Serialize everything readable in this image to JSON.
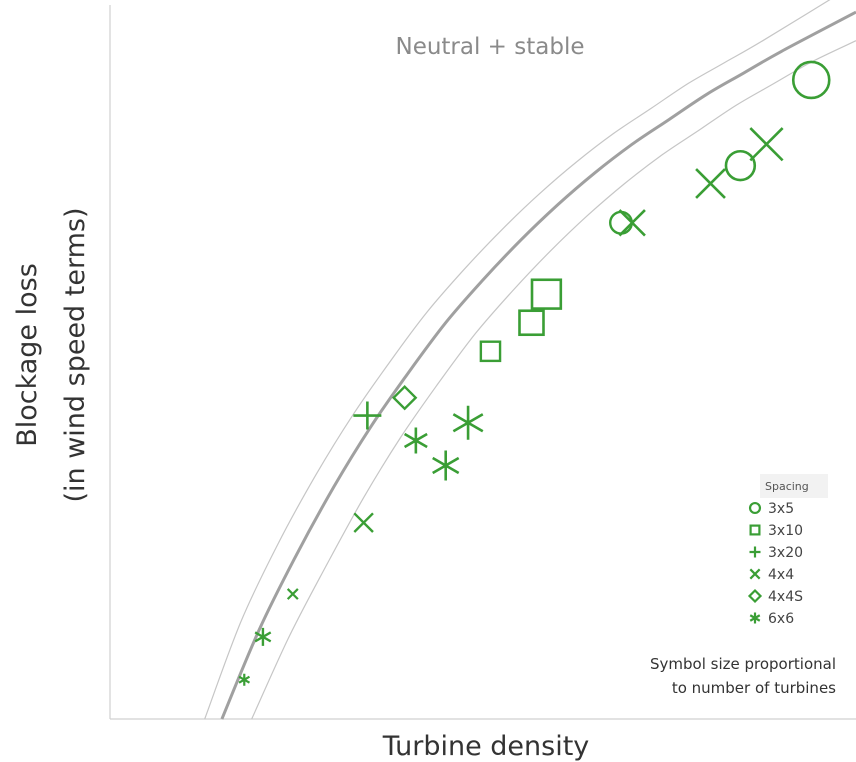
{
  "chart_data": {
    "type": "scatter",
    "title": "",
    "subtitle": "Neutral + stable",
    "xlabel": "Turbine density",
    "ylabel_lines": [
      "Blockage loss",
      "(in wind speed terms)"
    ],
    "xlim": [
      0,
      100
    ],
    "ylim": [
      0,
      100
    ],
    "grid": false,
    "colors": {
      "points": "#3a9e35",
      "fit_line": "#a0a0a0",
      "band": "#c6c6c6",
      "axis": "#d0d0d0",
      "text": "#333333",
      "subtitle": "#8a8a8a",
      "legend_bg": "#f2f2f2"
    },
    "fit": {
      "description": "curve",
      "center": [
        [
          15,
          0
        ],
        [
          20,
          12.5
        ],
        [
          25,
          23
        ],
        [
          30,
          32.5
        ],
        [
          35,
          41
        ],
        [
          40,
          48.5
        ],
        [
          45,
          55.5
        ],
        [
          50,
          61.5
        ],
        [
          55,
          67
        ],
        [
          60,
          72
        ],
        [
          65,
          76.5
        ],
        [
          70,
          80.5
        ],
        [
          75,
          84
        ],
        [
          80,
          87.5
        ],
        [
          85,
          90.5
        ],
        [
          90,
          93.5
        ],
        [
          100,
          99
        ]
      ],
      "upper": [
        [
          12.7,
          0
        ],
        [
          17.5,
          13.5
        ],
        [
          22.5,
          24.5
        ],
        [
          27.5,
          34
        ],
        [
          32.5,
          42.5
        ],
        [
          37.5,
          50
        ],
        [
          42.5,
          57
        ],
        [
          47.5,
          63
        ],
        [
          52.5,
          68.5
        ],
        [
          57.5,
          73.5
        ],
        [
          62.5,
          78
        ],
        [
          67.5,
          82
        ],
        [
          72.5,
          85.5
        ],
        [
          77.5,
          89
        ],
        [
          82.5,
          92
        ],
        [
          87.5,
          95
        ],
        [
          100,
          103
        ]
      ],
      "lower": [
        [
          19,
          0
        ],
        [
          24,
          11.5
        ],
        [
          29,
          21.5
        ],
        [
          34,
          31
        ],
        [
          39,
          39.5
        ],
        [
          44,
          47
        ],
        [
          49,
          54
        ],
        [
          54,
          60
        ],
        [
          59,
          65.5
        ],
        [
          64,
          70.5
        ],
        [
          69,
          75
        ],
        [
          74,
          79
        ],
        [
          79,
          82.5
        ],
        [
          84,
          86
        ],
        [
          89,
          89
        ],
        [
          94,
          92
        ],
        [
          100,
          95
        ]
      ]
    },
    "series": [
      {
        "name": "3x5",
        "marker": "circle",
        "points": [
          {
            "x": 68.5,
            "y": 69.5,
            "size": 12
          },
          {
            "x": 84.5,
            "y": 77.5,
            "size": 16
          },
          {
            "x": 94,
            "y": 89.5,
            "size": 20
          }
        ]
      },
      {
        "name": "3x10",
        "marker": "square",
        "points": [
          {
            "x": 51,
            "y": 51.5,
            "size": 12
          },
          {
            "x": 56.5,
            "y": 55.5,
            "size": 15
          },
          {
            "x": 58.5,
            "y": 59.5,
            "size": 18
          }
        ]
      },
      {
        "name": "3x20",
        "marker": "plus",
        "points": [
          {
            "x": 34.5,
            "y": 42.5,
            "size": 14
          }
        ]
      },
      {
        "name": "4x4",
        "marker": "x",
        "points": [
          {
            "x": 34,
            "y": 27.5,
            "size": 11
          },
          {
            "x": 24.5,
            "y": 17.5,
            "size": 6
          },
          {
            "x": 70,
            "y": 69.5,
            "size": 15
          },
          {
            "x": 80.5,
            "y": 75,
            "size": 17
          },
          {
            "x": 88,
            "y": 80.5,
            "size": 19
          }
        ]
      },
      {
        "name": "4x4S",
        "marker": "diamond",
        "points": [
          {
            "x": 39.5,
            "y": 45,
            "size": 11
          }
        ]
      },
      {
        "name": "6x6",
        "marker": "asterisk",
        "points": [
          {
            "x": 18,
            "y": 5.5,
            "size": 6
          },
          {
            "x": 20.5,
            "y": 11.5,
            "size": 9
          },
          {
            "x": 41,
            "y": 39,
            "size": 13
          },
          {
            "x": 45,
            "y": 35.5,
            "size": 15
          },
          {
            "x": 48,
            "y": 41.5,
            "size": 17
          }
        ]
      }
    ],
    "legend": {
      "title": "Spacing",
      "entries": [
        {
          "marker": "circle",
          "label": "3x5"
        },
        {
          "marker": "square",
          "label": "3x10"
        },
        {
          "marker": "plus",
          "label": "3x20"
        },
        {
          "marker": "x",
          "label": "4x4"
        },
        {
          "marker": "diamond",
          "label": "4x4S"
        },
        {
          "marker": "asterisk",
          "label": "6x6"
        }
      ],
      "placement": "right"
    },
    "annotation_lines": [
      "Symbol size proportional",
      "to number of turbines"
    ]
  }
}
